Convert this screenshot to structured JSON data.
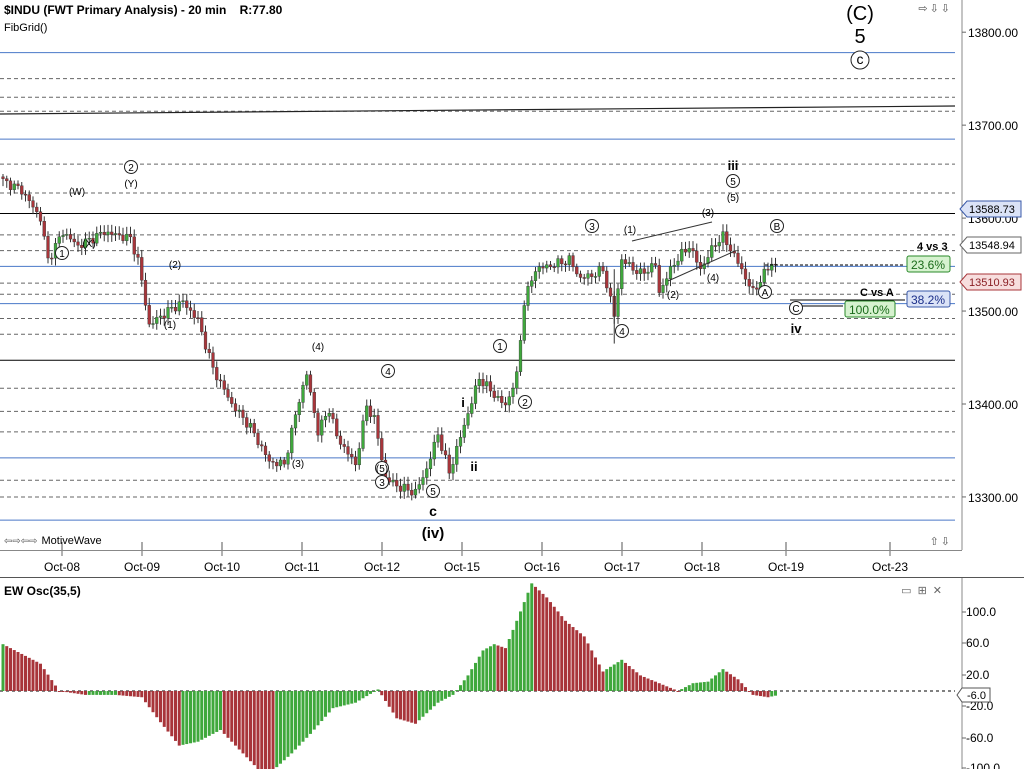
{
  "header": {
    "symbol_title": "$INDU (FWT Primary Analysis) - 20 min",
    "readout": "R:77.80",
    "study_label": "FibGrid()",
    "footer_brand": "MotiveWave"
  },
  "osc": {
    "title": "EW Osc(35,5)",
    "ticks": [
      "100.0",
      "60.0",
      "20.0",
      "-20.0",
      "-60.0",
      "-100.0"
    ],
    "last_value": "-6.0"
  },
  "chart_data": [
    {
      "type": "candlestick",
      "title": "$INDU (FWT Primary Analysis) - 20 min",
      "ylim": [
        13230,
        13820
      ],
      "y_ticks": [
        13300,
        13400,
        13500,
        13600,
        13700,
        13800
      ],
      "y_tick_labels": [
        "13300.00",
        "13400.00",
        "13500.00",
        "13600.00",
        "13700.00",
        "13800.00"
      ],
      "x_labels": [
        "Oct-08",
        "Oct-09",
        "Oct-10",
        "Oct-11",
        "Oct-12",
        "Oct-15",
        "Oct-16",
        "Oct-17",
        "Oct-18",
        "Oct-19",
        "Oct-23"
      ],
      "anchor_path": [
        [
          0,
          13640
        ],
        [
          5,
          13630
        ],
        [
          10,
          13600
        ],
        [
          12,
          13555
        ],
        [
          16,
          13585
        ],
        [
          20,
          13570
        ],
        [
          27,
          13585
        ],
        [
          34,
          13578
        ],
        [
          36,
          13555
        ],
        [
          39,
          13485
        ],
        [
          44,
          13500
        ],
        [
          48,
          13510
        ],
        [
          52,
          13490
        ],
        [
          56,
          13438
        ],
        [
          61,
          13400
        ],
        [
          66,
          13375
        ],
        [
          71,
          13338
        ],
        [
          75,
          13335
        ],
        [
          79,
          13405
        ],
        [
          81,
          13432
        ],
        [
          84,
          13370
        ],
        [
          87,
          13395
        ],
        [
          89,
          13365
        ],
        [
          94,
          13335
        ],
        [
          97,
          13398
        ],
        [
          99,
          13384
        ],
        [
          102,
          13320
        ],
        [
          106,
          13310
        ],
        [
          110,
          13305
        ],
        [
          113,
          13330
        ],
        [
          116,
          13368
        ],
        [
          119,
          13326
        ],
        [
          124,
          13390
        ],
        [
          127,
          13428
        ],
        [
          131,
          13410
        ],
        [
          134,
          13398
        ],
        [
          137,
          13430
        ],
        [
          139,
          13510
        ],
        [
          142,
          13545
        ],
        [
          147,
          13550
        ],
        [
          151,
          13555
        ],
        [
          154,
          13535
        ],
        [
          158,
          13540
        ],
        [
          160,
          13545
        ],
        [
          163,
          13495
        ],
        [
          165,
          13555
        ],
        [
          170,
          13540
        ],
        [
          174,
          13550
        ],
        [
          175,
          13520
        ],
        [
          179,
          13552
        ],
        [
          183,
          13570
        ],
        [
          186,
          13545
        ],
        [
          190,
          13573
        ],
        [
          192,
          13580
        ],
        [
          195,
          13560
        ],
        [
          200,
          13520
        ],
        [
          203,
          13540
        ],
        [
          205,
          13552
        ],
        [
          206,
          13548
        ]
      ],
      "key_levels": {
        "last_price": "13548.94",
        "marker_upper": "13588.73",
        "marker_lower": "13510.93"
      },
      "fib_levels": [
        {
          "label": "23.6%",
          "caption": "4 vs 3",
          "price": 13526
        },
        {
          "label": "38.2%",
          "caption": "C vs A",
          "price": 13507
        },
        {
          "label": "100.0%",
          "caption": "",
          "price": 13488
        }
      ],
      "wave_labels": {
        "top_C": "(C)",
        "top_5": "5",
        "top_c_circle": "c",
        "iii": "iii",
        "iv": "iv",
        "i": "i",
        "ii": "ii",
        "c_low": "c",
        "iv_paren": "(iv)",
        "w": "(W)",
        "x": "(X)",
        "y": "(Y)",
        "two_circle": "2",
        "one_circle": "1",
        "four_circle": "4",
        "three_circle": "3",
        "five_circle": "5",
        "A_circle": "A",
        "B_circle": "B",
        "C_circle": "C",
        "paren_1": "(1)",
        "paren_2": "(2)",
        "paren_3": "(3)",
        "paren_4": "(4)",
        "paren_5": "(5)"
      }
    },
    {
      "type": "bar",
      "title": "EW Osc(35,5)",
      "ylim": [
        -100,
        140
      ],
      "anchors": [
        [
          0,
          60
        ],
        [
          10,
          35
        ],
        [
          15,
          0
        ],
        [
          22,
          -5
        ],
        [
          30,
          -5
        ],
        [
          37,
          -8
        ],
        [
          42,
          -40
        ],
        [
          47,
          -70
        ],
        [
          52,
          -65
        ],
        [
          58,
          -50
        ],
        [
          63,
          -75
        ],
        [
          68,
          -100
        ],
        [
          72,
          -102
        ],
        [
          77,
          -80
        ],
        [
          82,
          -55
        ],
        [
          88,
          -22
        ],
        [
          94,
          -15
        ],
        [
          100,
          2
        ],
        [
          105,
          -35
        ],
        [
          110,
          -42
        ],
        [
          116,
          -15
        ],
        [
          120,
          -5
        ],
        [
          124,
          20
        ],
        [
          128,
          52
        ],
        [
          131,
          60
        ],
        [
          134,
          55
        ],
        [
          137,
          90
        ],
        [
          141,
          138
        ],
        [
          145,
          120
        ],
        [
          150,
          90
        ],
        [
          155,
          70
        ],
        [
          160,
          25
        ],
        [
          165,
          40
        ],
        [
          170,
          20
        ],
        [
          176,
          8
        ],
        [
          180,
          0
        ],
        [
          184,
          10
        ],
        [
          188,
          12
        ],
        [
          192,
          28
        ],
        [
          196,
          15
        ],
        [
          200,
          -5
        ],
        [
          204,
          -8
        ],
        [
          206,
          -6
        ]
      ],
      "colors": {
        "up": "#3fa83c",
        "down": "#a8353a"
      }
    }
  ]
}
